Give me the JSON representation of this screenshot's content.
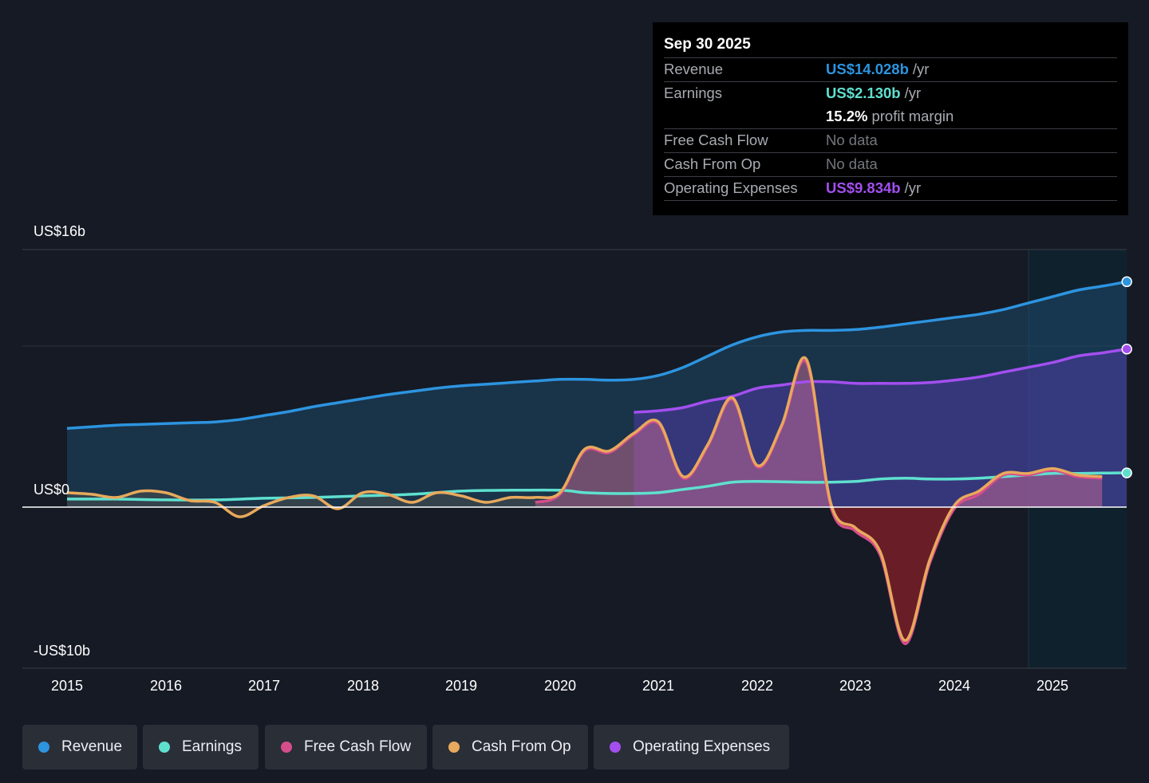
{
  "tooltip": {
    "date": "Sep 30 2025",
    "rows": {
      "revenue": {
        "label": "Revenue",
        "value": "US$14.028b",
        "unit": "/yr"
      },
      "earnings": {
        "label": "Earnings",
        "value": "US$2.130b",
        "unit": "/yr"
      },
      "margin": {
        "value": "15.2%",
        "unit": "profit margin"
      },
      "fcf": {
        "label": "Free Cash Flow",
        "value": "No data"
      },
      "cfo": {
        "label": "Cash From Op",
        "value": "No data"
      },
      "opex": {
        "label": "Operating Expenses",
        "value": "US$9.834b",
        "unit": "/yr"
      }
    }
  },
  "legend": {
    "revenue": "Revenue",
    "earnings": "Earnings",
    "fcf": "Free Cash Flow",
    "cfo": "Cash From Op",
    "opex": "Operating Expenses"
  },
  "colors": {
    "revenue": "#2d94e0",
    "earnings": "#5fe0cf",
    "fcf": "#d64d8c",
    "cfo": "#e8a95c",
    "opex": "#a34ff0"
  },
  "chart_data": {
    "type": "area",
    "title": "",
    "xlabel": "",
    "ylabel": "",
    "y_tick_labels": [
      "US$16b",
      "US$0",
      "-US$10b"
    ],
    "x_tick_labels": [
      "2015",
      "2016",
      "2017",
      "2018",
      "2019",
      "2020",
      "2021",
      "2022",
      "2023",
      "2024",
      "2025"
    ],
    "xlim": [
      2015.0,
      2025.75
    ],
    "ylim": [
      -10,
      16
    ],
    "grid": true,
    "highlighted_period": [
      2024.75,
      2025.75
    ],
    "series": [
      {
        "name": "Revenue",
        "key": "revenue",
        "x": [
          2015.0,
          2015.25,
          2015.5,
          2015.75,
          2016.0,
          2016.25,
          2016.5,
          2016.75,
          2017.0,
          2017.25,
          2017.5,
          2017.75,
          2018.0,
          2018.25,
          2018.5,
          2018.75,
          2019.0,
          2019.25,
          2019.5,
          2019.75,
          2020.0,
          2020.25,
          2020.5,
          2020.75,
          2021.0,
          2021.25,
          2021.5,
          2021.75,
          2022.0,
          2022.25,
          2022.5,
          2022.75,
          2023.0,
          2023.25,
          2023.5,
          2023.75,
          2024.0,
          2024.25,
          2024.5,
          2024.75,
          2025.0,
          2025.25,
          2025.5,
          2025.75
        ],
        "values": [
          4.9,
          5.0,
          5.1,
          5.15,
          5.2,
          5.25,
          5.3,
          5.45,
          5.7,
          5.95,
          6.25,
          6.5,
          6.75,
          7.0,
          7.2,
          7.4,
          7.55,
          7.65,
          7.75,
          7.85,
          7.95,
          7.95,
          7.9,
          7.95,
          8.2,
          8.7,
          9.4,
          10.1,
          10.6,
          10.9,
          11.0,
          11.0,
          11.05,
          11.2,
          11.4,
          11.6,
          11.8,
          12.0,
          12.3,
          12.7,
          13.1,
          13.5,
          13.75,
          14.028
        ]
      },
      {
        "name": "Earnings",
        "key": "earnings",
        "x": [
          2015.0,
          2015.5,
          2016.0,
          2016.5,
          2017.0,
          2017.5,
          2018.0,
          2018.5,
          2019.0,
          2019.5,
          2020.0,
          2020.25,
          2020.5,
          2020.75,
          2021.0,
          2021.25,
          2021.5,
          2021.75,
          2022.0,
          2022.5,
          2022.75,
          2023.0,
          2023.25,
          2023.5,
          2023.75,
          2024.0,
          2024.25,
          2024.5,
          2024.75,
          2025.0,
          2025.25,
          2025.5,
          2025.75
        ],
        "values": [
          0.5,
          0.5,
          0.45,
          0.45,
          0.55,
          0.6,
          0.7,
          0.8,
          1.0,
          1.05,
          1.05,
          0.9,
          0.85,
          0.85,
          0.9,
          1.1,
          1.3,
          1.55,
          1.6,
          1.55,
          1.55,
          1.6,
          1.75,
          1.8,
          1.75,
          1.75,
          1.8,
          1.9,
          2.0,
          2.1,
          2.1,
          2.12,
          2.13
        ]
      },
      {
        "name": "Free Cash Flow",
        "key": "fcf",
        "x": [
          2019.75,
          2020.0,
          2020.25,
          2020.5,
          2020.75,
          2021.0,
          2021.25,
          2021.5,
          2021.75,
          2022.0,
          2022.25,
          2022.5,
          2022.75,
          2023.0,
          2023.25,
          2023.5,
          2023.75,
          2024.0,
          2024.25,
          2024.5,
          2024.75,
          2025.0,
          2025.25,
          2025.5
        ],
        "values": [
          0.3,
          0.8,
          3.5,
          3.4,
          4.5,
          5.2,
          1.8,
          3.8,
          6.7,
          2.5,
          5.0,
          9.0,
          0.0,
          -1.5,
          -3.0,
          -8.5,
          -3.5,
          -0.1,
          0.8,
          2.0,
          2.0,
          2.3,
          1.9,
          1.8
        ]
      },
      {
        "name": "Cash From Op",
        "key": "cfo",
        "x": [
          2015.0,
          2015.25,
          2015.5,
          2015.75,
          2016.0,
          2016.25,
          2016.5,
          2016.75,
          2017.0,
          2017.25,
          2017.5,
          2017.75,
          2018.0,
          2018.25,
          2018.5,
          2018.75,
          2019.0,
          2019.25,
          2019.5,
          2019.75,
          2020.0,
          2020.25,
          2020.5,
          2020.75,
          2021.0,
          2021.25,
          2021.5,
          2021.75,
          2022.0,
          2022.25,
          2022.5,
          2022.75,
          2023.0,
          2023.25,
          2023.5,
          2023.75,
          2024.0,
          2024.25,
          2024.5,
          2024.75,
          2025.0,
          2025.25,
          2025.5
        ],
        "values": [
          0.9,
          0.8,
          0.6,
          1.0,
          0.9,
          0.4,
          0.3,
          -0.6,
          0.1,
          0.6,
          0.7,
          -0.1,
          0.9,
          0.8,
          0.3,
          0.9,
          0.7,
          0.3,
          0.6,
          0.6,
          0.9,
          3.6,
          3.5,
          4.6,
          5.3,
          1.9,
          3.9,
          6.8,
          2.6,
          5.1,
          9.2,
          0.2,
          -1.3,
          -2.8,
          -8.3,
          -3.3,
          0.1,
          1.0,
          2.1,
          2.1,
          2.4,
          2.0,
          1.9
        ]
      },
      {
        "name": "Operating Expenses",
        "key": "opex",
        "x": [
          2020.75,
          2021.0,
          2021.25,
          2021.5,
          2021.75,
          2022.0,
          2022.25,
          2022.5,
          2022.75,
          2023.0,
          2023.25,
          2023.5,
          2023.75,
          2024.0,
          2024.25,
          2024.5,
          2024.75,
          2025.0,
          2025.25,
          2025.5,
          2025.75
        ],
        "values": [
          5.9,
          6.0,
          6.2,
          6.6,
          6.9,
          7.4,
          7.6,
          7.8,
          7.8,
          7.7,
          7.7,
          7.7,
          7.75,
          7.9,
          8.1,
          8.4,
          8.7,
          9.0,
          9.4,
          9.6,
          9.834
        ]
      }
    ]
  }
}
